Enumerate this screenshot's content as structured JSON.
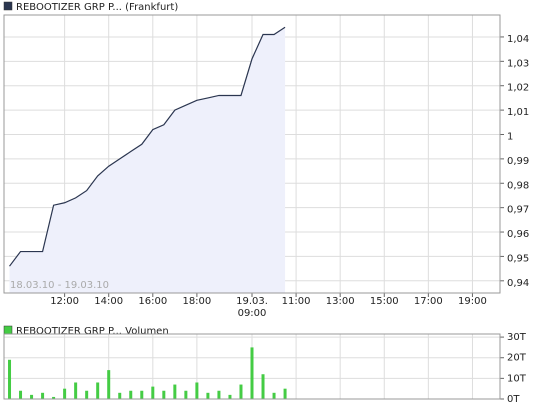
{
  "chart_data": [
    {
      "type": "line",
      "annotation": "18.03.10 - 19.03.10",
      "categories": [
        null,
        null,
        null,
        null,
        null,
        "12:00",
        null,
        null,
        null,
        "14:00",
        null,
        null,
        null,
        "16:00",
        null,
        null,
        null,
        "18:00",
        null,
        null,
        null,
        null,
        "19.03.\n09:00",
        null,
        null,
        null,
        "11:00",
        null,
        null,
        null,
        "13:00",
        null,
        null,
        null,
        "15:00",
        null,
        null,
        null,
        "17:00",
        null,
        null,
        null,
        "19:00",
        null,
        null
      ],
      "series": [
        {
          "name": "REBOOTIZER GRP P... (Frankfurt)",
          "color": "#2b3650",
          "fill": "#eef0fb",
          "values": [
            0.946,
            0.952,
            0.952,
            0.952,
            0.971,
            0.972,
            0.974,
            0.977,
            0.983,
            0.987,
            0.99,
            0.993,
            0.996,
            1.002,
            1.004,
            1.01,
            1.012,
            1.014,
            1.015,
            1.016,
            1.016,
            1.016,
            1.031,
            1.041,
            1.041,
            1.044,
            null,
            null,
            null,
            null,
            null,
            null,
            null,
            null,
            null,
            null,
            null,
            null,
            null,
            null,
            null,
            null,
            null,
            null,
            null
          ]
        }
      ],
      "ylim": [
        0.935,
        1.049
      ],
      "yticks": [
        {
          "value": 0.94,
          "label": "0,94"
        },
        {
          "value": 0.95,
          "label": "0,95"
        },
        {
          "value": 0.96,
          "label": "0,96"
        },
        {
          "value": 0.97,
          "label": "0,97"
        },
        {
          "value": 0.98,
          "label": "0,98"
        },
        {
          "value": 0.99,
          "label": "0,99"
        },
        1,
        {
          "value": 1.01,
          "label": "1,01"
        },
        {
          "value": 1.02,
          "label": "1,02"
        },
        {
          "value": 1.03,
          "label": "1,03"
        },
        {
          "value": 1.04,
          "label": "1,04"
        }
      ],
      "grid": true
    },
    {
      "type": "bar",
      "series": [
        {
          "name": "REBOOTIZER GRP P... Volumen",
          "color": "#44cc44",
          "values": [
            19,
            4,
            2,
            3,
            1,
            5,
            8,
            4,
            8,
            14,
            3,
            4,
            4,
            6,
            4,
            7,
            4,
            8,
            3,
            4,
            2,
            7,
            25,
            12,
            3,
            5,
            null,
            null,
            null,
            null,
            null,
            null,
            null,
            null,
            null,
            null,
            null,
            null,
            null,
            null,
            null,
            null,
            null,
            null,
            null
          ]
        }
      ],
      "ylim": [
        0,
        31.5
      ],
      "yticks": [
        {
          "value": 0,
          "label": "0T"
        },
        {
          "value": 10,
          "label": "10T"
        },
        {
          "value": 20,
          "label": "20T"
        },
        {
          "value": 30,
          "label": "30T"
        }
      ],
      "grid": true
    }
  ]
}
